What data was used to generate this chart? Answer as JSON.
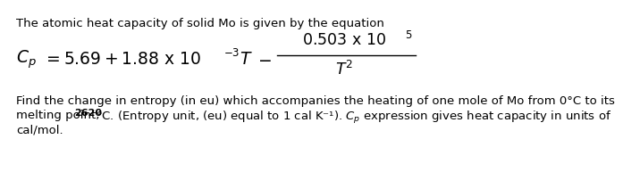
{
  "line1": "The atomic heat capacity of solid Mo is given by the equation",
  "eq_Cp": "$\\mathit{C_p}$",
  "eq_body": "= 5.69 + 1.88 x 10",
  "eq_exp": "−3",
  "eq_T": " $\\mathit{T}$ –",
  "num_text": "0.503 x 10",
  "num_exp": "5",
  "den_text": "$\\mathit{T}^2$",
  "para1": "Find the change in entropy (in eu) which accompanies the heating of one mole of Mo from 0°C to its",
  "para2a": "melting point, ",
  "para2b": "2620",
  "para2c": "°C. (Entropy unit, (eu) equal to 1 cal K⁻¹). $\\mathit{C_p}$ expression gives heat capacity in units of",
  "para3": "cal/mol.",
  "bg_color": "#ffffff",
  "text_color": "#000000",
  "font_main": 9.5,
  "font_eq": 13.5
}
